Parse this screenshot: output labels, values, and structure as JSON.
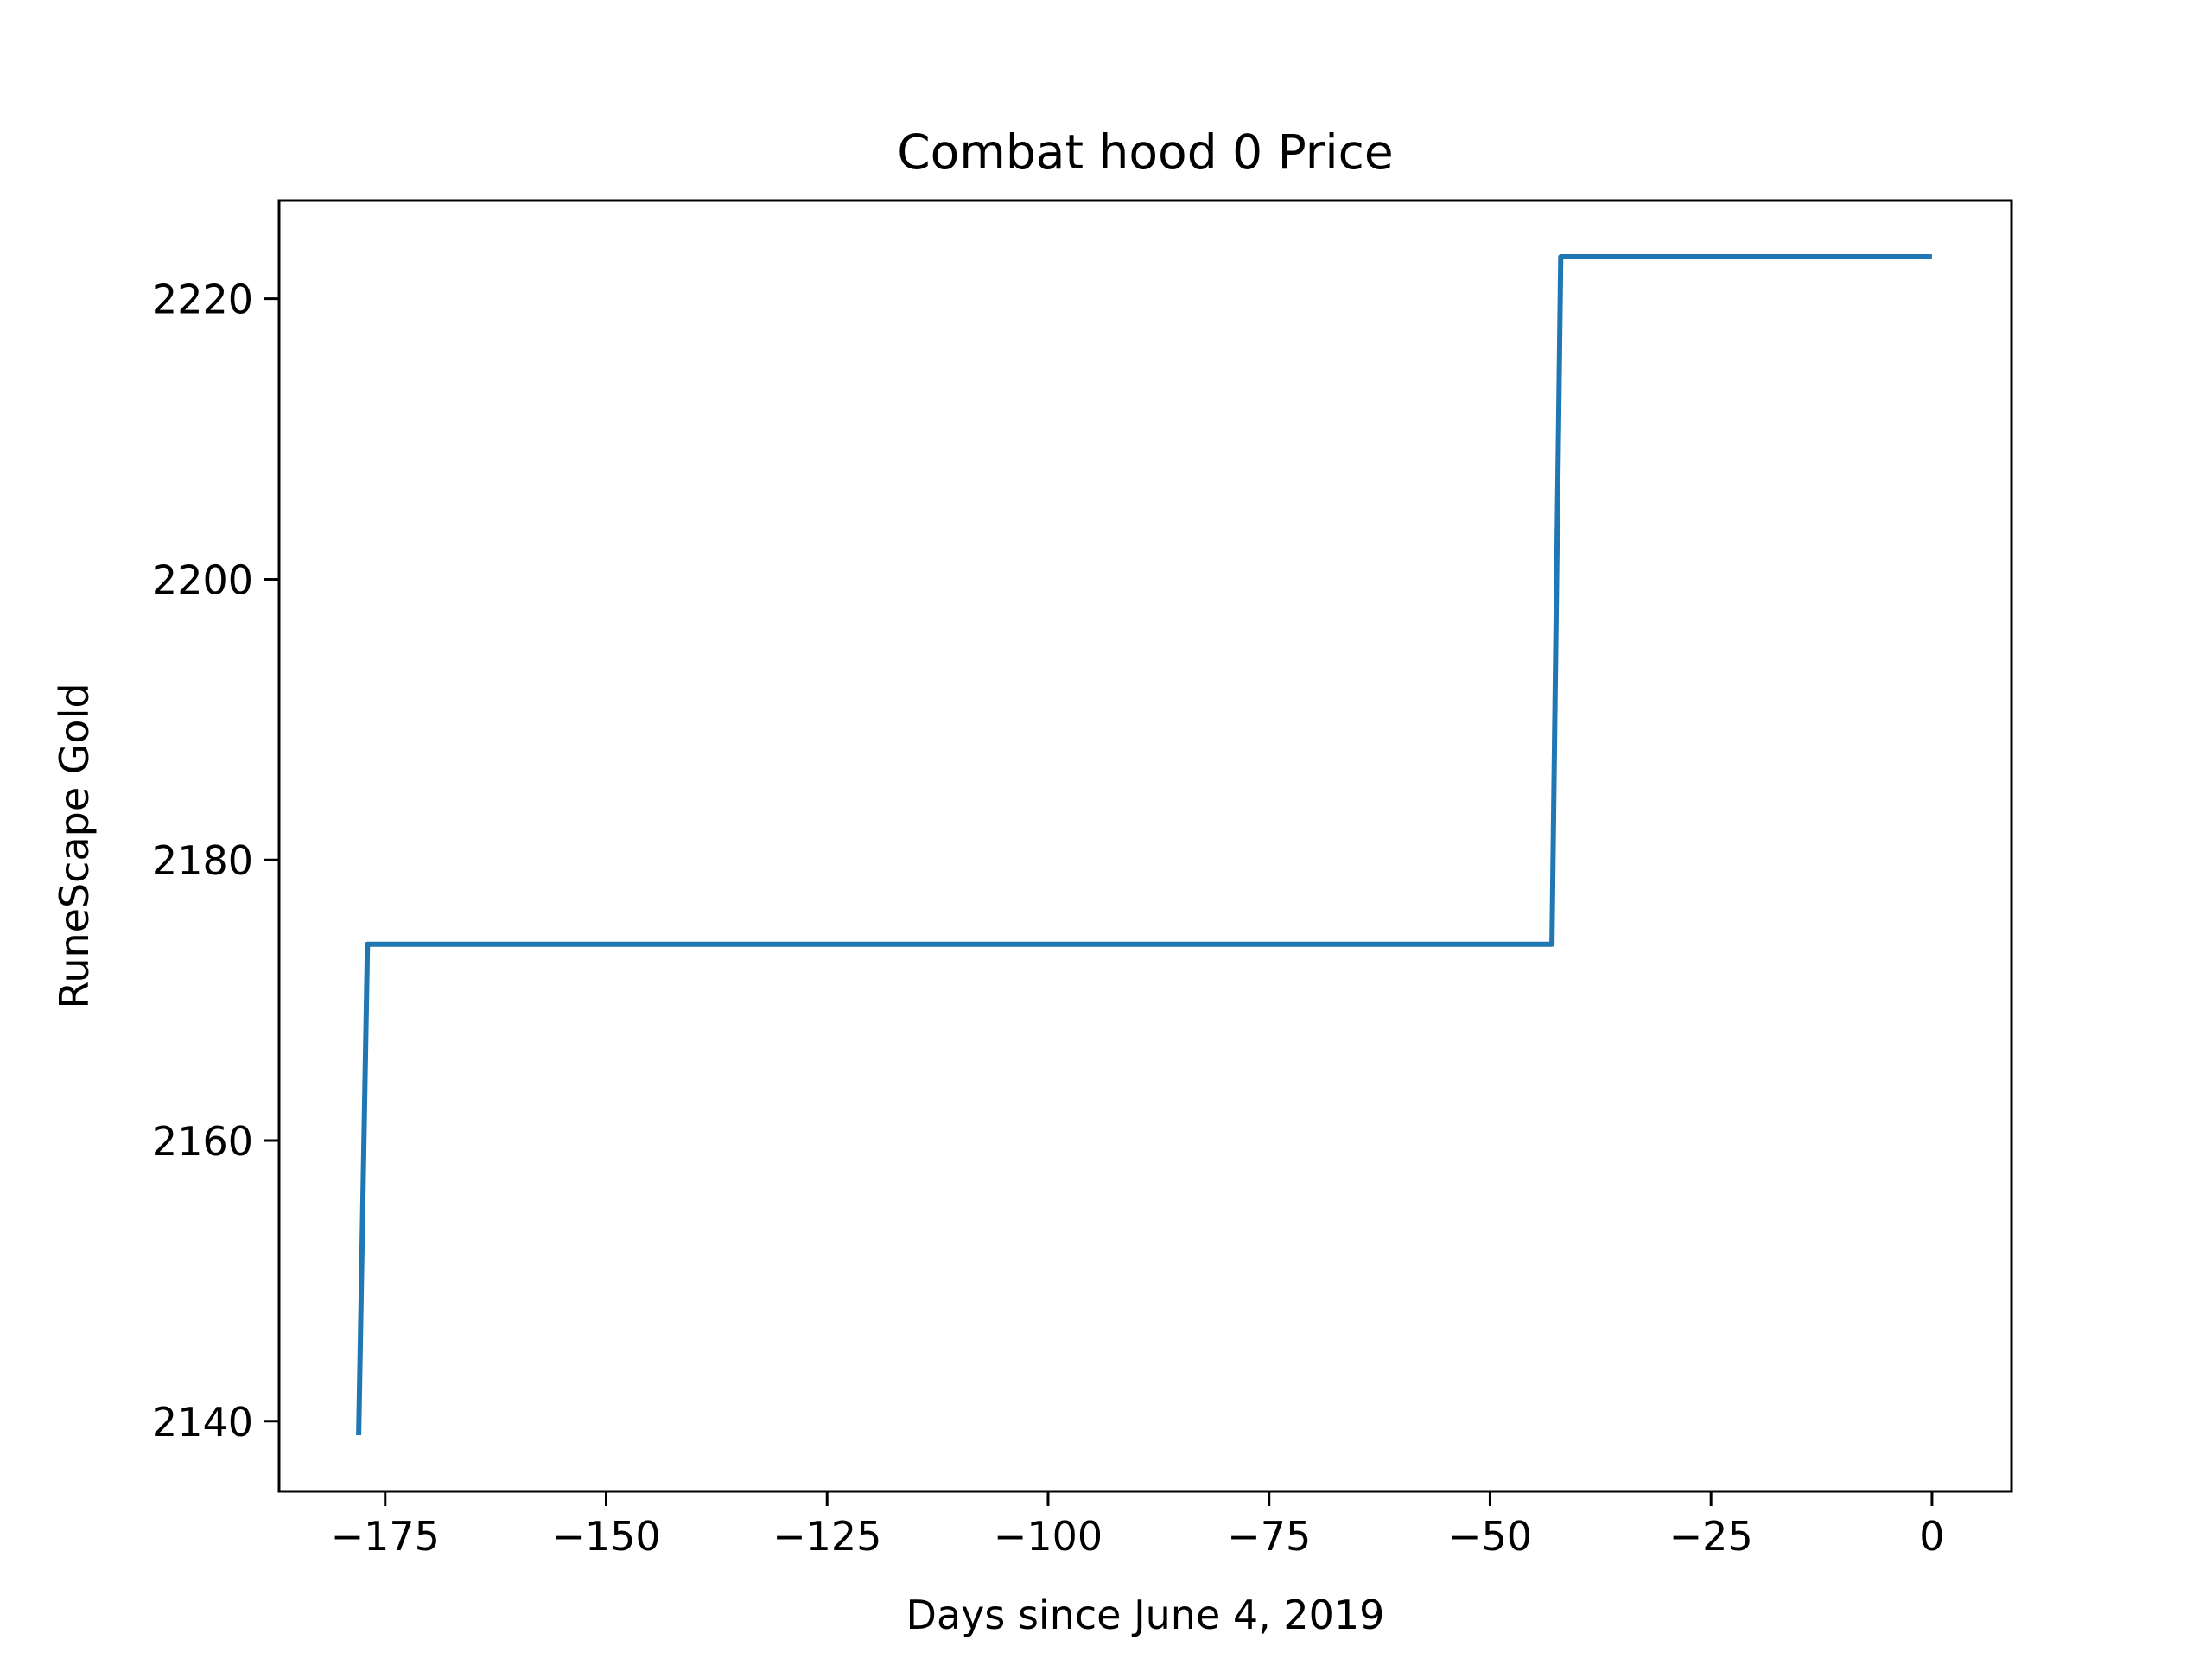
{
  "chart_data": {
    "type": "line",
    "title": "Combat hood 0 Price",
    "xlabel": "Days since June 4, 2019",
    "ylabel": "RuneScape Gold",
    "xlim": [
      -187,
      9
    ],
    "ylim": [
      2135,
      2227
    ],
    "xticks": [
      -175,
      -150,
      -125,
      -100,
      -75,
      -50,
      -25,
      0
    ],
    "xtick_labels": [
      "−175",
      "−150",
      "−125",
      "−100",
      "−75",
      "−50",
      "−25",
      "0"
    ],
    "yticks": [
      2140,
      2160,
      2180,
      2200,
      2220
    ],
    "ytick_labels": [
      "2140",
      "2160",
      "2180",
      "2200",
      "2220"
    ],
    "grid": false,
    "legend": "none",
    "series": [
      {
        "color": "#1f77b4",
        "x": [
          -178,
          -177,
          -43,
          -42,
          0
        ],
        "y": [
          2139,
          2174,
          2174,
          2223,
          2223
        ]
      }
    ]
  }
}
